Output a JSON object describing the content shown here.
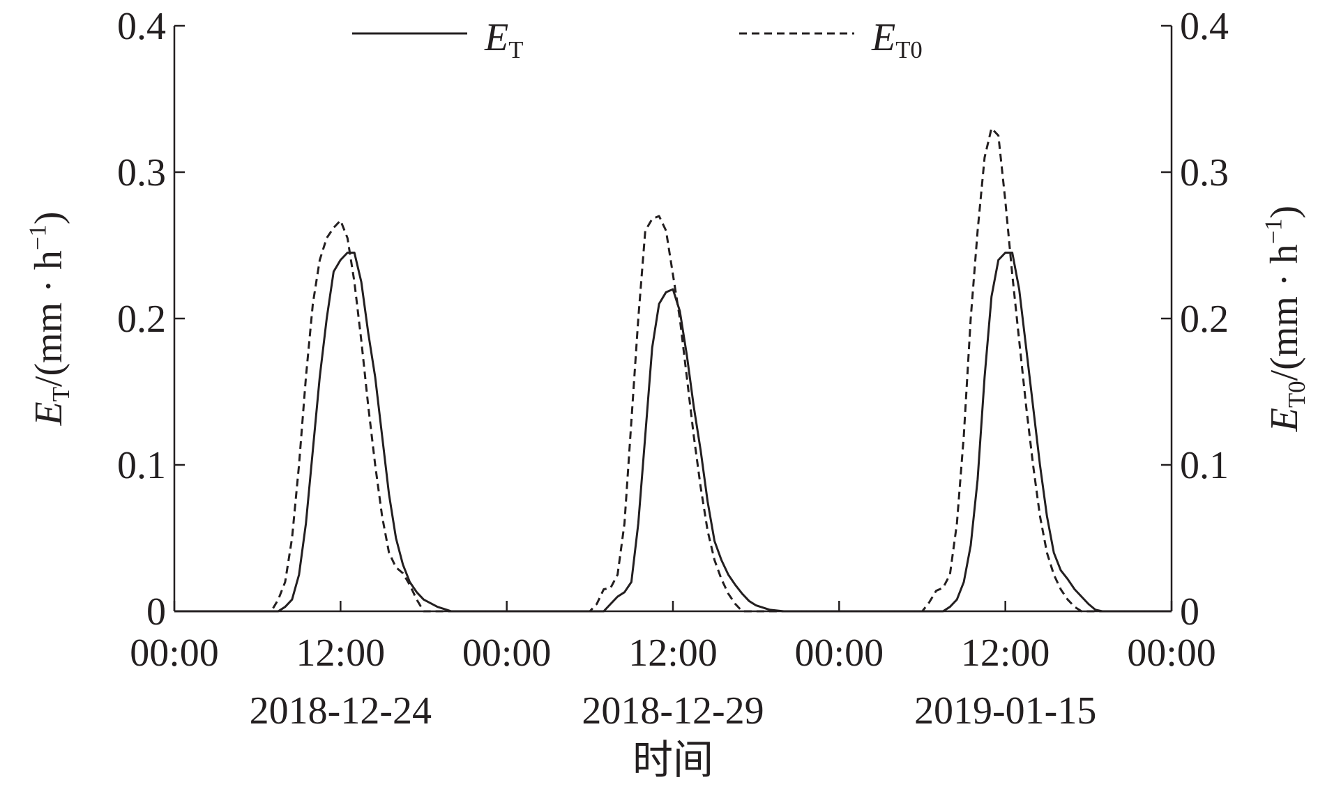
{
  "chart_data": {
    "type": "line",
    "xlabel": "时间",
    "ylabel_left": {
      "base": "E",
      "sub": "T",
      "unit_pre": "/(mm · h",
      "sup": "−1",
      "unit_post": ")"
    },
    "ylabel_right": {
      "base": "E",
      "sub": "T0",
      "unit_pre": "/(mm · h",
      "sup": "−1",
      "unit_post": ")"
    },
    "ylim": [
      0,
      0.4
    ],
    "yticks": [
      "0",
      "0.1",
      "0.2",
      "0.3",
      "0.4"
    ],
    "x_hours": [
      0,
      72
    ],
    "xtick_labels": [
      "00:00",
      "12:00",
      "00:00",
      "12:00",
      "00:00",
      "12:00",
      "00:00"
    ],
    "dates": [
      "2018-12-24",
      "2018-12-29",
      "2019-01-15"
    ],
    "legend_position": "top",
    "colors": {
      "line": "#231f20"
    },
    "series": [
      {
        "name": "E_T",
        "label": {
          "base": "E",
          "sub": "T"
        },
        "style": "solid",
        "x": [
          0,
          6,
          7,
          7.5,
          8,
          8.5,
          9,
          9.5,
          10,
          10.5,
          11,
          11.5,
          12,
          12.5,
          13,
          13.5,
          14,
          14.5,
          15,
          15.5,
          16,
          16.5,
          17,
          17.5,
          18,
          19,
          20,
          21,
          22,
          24,
          24,
          30,
          31,
          31.5,
          32,
          32.5,
          33,
          33.5,
          34,
          34.5,
          35,
          35.5,
          36,
          36.5,
          37,
          37.5,
          38,
          38.5,
          39,
          39.5,
          40,
          40.5,
          41,
          41.5,
          42,
          43,
          44,
          45,
          46,
          48,
          48,
          54,
          55,
          55.5,
          56,
          56.5,
          57,
          57.5,
          58,
          58.5,
          59,
          59.5,
          60,
          60.5,
          61,
          61.5,
          62,
          62.5,
          63,
          63.5,
          64,
          64.5,
          65,
          65.5,
          66,
          66.5,
          67,
          68,
          69,
          70,
          72
        ],
        "y": [
          0,
          0,
          0,
          0,
          0.003,
          0.008,
          0.025,
          0.06,
          0.11,
          0.16,
          0.2,
          0.232,
          0.24,
          0.245,
          0.245,
          0.225,
          0.19,
          0.16,
          0.12,
          0.08,
          0.05,
          0.032,
          0.02,
          0.013,
          0.008,
          0.003,
          0,
          0,
          0,
          0,
          0,
          0,
          0,
          0.005,
          0.01,
          0.013,
          0.02,
          0.06,
          0.12,
          0.18,
          0.21,
          0.218,
          0.22,
          0.205,
          0.175,
          0.14,
          0.11,
          0.075,
          0.048,
          0.035,
          0.025,
          0.018,
          0.012,
          0.007,
          0.004,
          0.001,
          0,
          0,
          0,
          0,
          0,
          0,
          0,
          0,
          0.003,
          0.008,
          0.02,
          0.045,
          0.09,
          0.16,
          0.215,
          0.24,
          0.245,
          0.245,
          0.22,
          0.18,
          0.14,
          0.1,
          0.065,
          0.04,
          0.028,
          0.022,
          0.015,
          0.01,
          0.005,
          0.001,
          0,
          0,
          0,
          0,
          0
        ]
      },
      {
        "name": "E_T0",
        "label": {
          "base": "E",
          "sub": "T0"
        },
        "style": "dashed",
        "x": [
          0,
          6,
          6.5,
          7,
          7.5,
          8,
          8.5,
          9,
          9.5,
          10,
          10.5,
          11,
          11.5,
          12,
          12.5,
          13,
          13.5,
          14,
          14.5,
          15,
          15.5,
          16,
          16.5,
          17,
          17.5,
          18,
          19,
          20,
          24,
          24,
          30,
          30.5,
          31,
          31.5,
          32,
          32.5,
          33,
          33.5,
          34,
          34.5,
          35,
          35.5,
          36,
          36.5,
          37,
          37.5,
          38,
          38.5,
          39,
          39.5,
          40,
          40.5,
          41,
          41.5,
          42,
          43,
          44,
          48,
          48,
          54,
          54.5,
          55,
          55.5,
          56,
          56.5,
          57,
          57.5,
          58,
          58.5,
          59,
          59.5,
          60,
          60.5,
          61,
          61.5,
          62,
          62.5,
          63,
          63.5,
          64,
          64.5,
          65,
          65.5,
          66,
          67,
          68,
          72
        ],
        "y": [
          0,
          0,
          0,
          0,
          0.008,
          0.02,
          0.05,
          0.1,
          0.16,
          0.21,
          0.24,
          0.255,
          0.262,
          0.267,
          0.255,
          0.225,
          0.185,
          0.14,
          0.1,
          0.065,
          0.04,
          0.03,
          0.026,
          0.018,
          0.008,
          0,
          0,
          0,
          0,
          0,
          0,
          0.005,
          0.015,
          0.016,
          0.025,
          0.06,
          0.13,
          0.2,
          0.26,
          0.268,
          0.27,
          0.26,
          0.23,
          0.2,
          0.16,
          0.12,
          0.085,
          0.055,
          0.035,
          0.022,
          0.012,
          0.005,
          0,
          0,
          0,
          0,
          0,
          0,
          0,
          0,
          0.006,
          0.014,
          0.016,
          0.025,
          0.06,
          0.12,
          0.2,
          0.26,
          0.31,
          0.33,
          0.325,
          0.28,
          0.23,
          0.185,
          0.14,
          0.1,
          0.065,
          0.04,
          0.025,
          0.015,
          0.008,
          0.003,
          0,
          0,
          0,
          0,
          0
        ]
      }
    ]
  }
}
